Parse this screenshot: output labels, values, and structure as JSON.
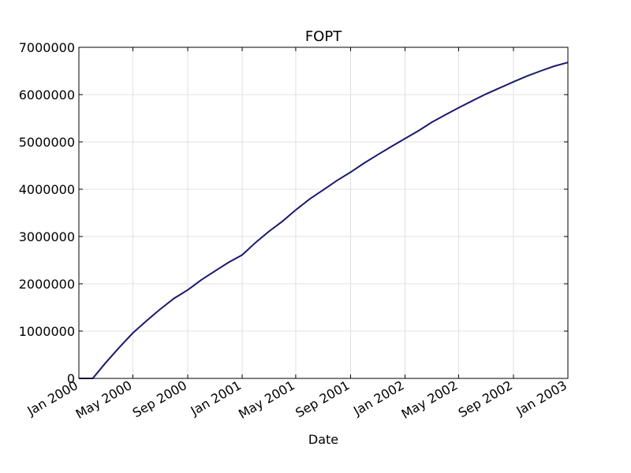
{
  "chart_data": {
    "type": "line",
    "title": "FOPT",
    "xlabel": "Date",
    "ylabel": "",
    "x_ticks": [
      "2000-01-01",
      "2000-05-01",
      "2000-09-01",
      "2001-01-01",
      "2001-05-01",
      "2001-09-01",
      "2002-01-01",
      "2002-05-01",
      "2002-09-01",
      "2003-01-01"
    ],
    "x_tick_labels": [
      "Jan 2000",
      "May 2000",
      "Sep 2000",
      "Jan 2001",
      "May 2001",
      "Sep 2001",
      "Jan 2002",
      "May 2002",
      "Sep 2002",
      "Jan 2003"
    ],
    "xlim": [
      "2000-01-01",
      "2003-01-01"
    ],
    "y_ticks": [
      0,
      1000000,
      2000000,
      3000000,
      4000000,
      5000000,
      6000000,
      7000000
    ],
    "y_tick_labels": [
      "0",
      "1000000",
      "2000000",
      "3000000",
      "4000000",
      "5000000",
      "6000000",
      "7000000"
    ],
    "ylim": [
      0,
      7000000
    ],
    "grid": true,
    "line_color": "#191970",
    "series": [
      {
        "x": [
          "2000-01-01",
          "2000-02-01",
          "2000-03-01",
          "2000-04-01",
          "2000-05-01",
          "2000-06-01",
          "2000-07-01",
          "2000-08-01",
          "2000-09-01",
          "2000-10-01",
          "2000-11-01",
          "2000-12-01",
          "2001-01-01",
          "2001-02-01",
          "2001-03-01",
          "2001-04-01",
          "2001-05-01",
          "2001-06-01",
          "2001-07-01",
          "2001-08-01",
          "2001-09-01",
          "2001-10-01",
          "2001-11-01",
          "2001-12-01",
          "2002-01-01",
          "2002-02-01",
          "2002-03-01",
          "2002-04-01",
          "2002-05-01",
          "2002-06-01",
          "2002-07-01",
          "2002-08-01",
          "2002-09-01",
          "2002-10-01",
          "2002-11-01",
          "2002-12-01",
          "2003-01-01"
        ],
        "values": [
          0,
          0,
          330000,
          660000,
          960000,
          1220000,
          1460000,
          1690000,
          1870000,
          2080000,
          2270000,
          2450000,
          2610000,
          2880000,
          3100000,
          3320000,
          3560000,
          3790000,
          3980000,
          4180000,
          4360000,
          4550000,
          4730000,
          4900000,
          5070000,
          5240000,
          5410000,
          5570000,
          5720000,
          5870000,
          6010000,
          6140000,
          6270000,
          6390000,
          6500000,
          6600000,
          6680000
        ]
      }
    ]
  }
}
